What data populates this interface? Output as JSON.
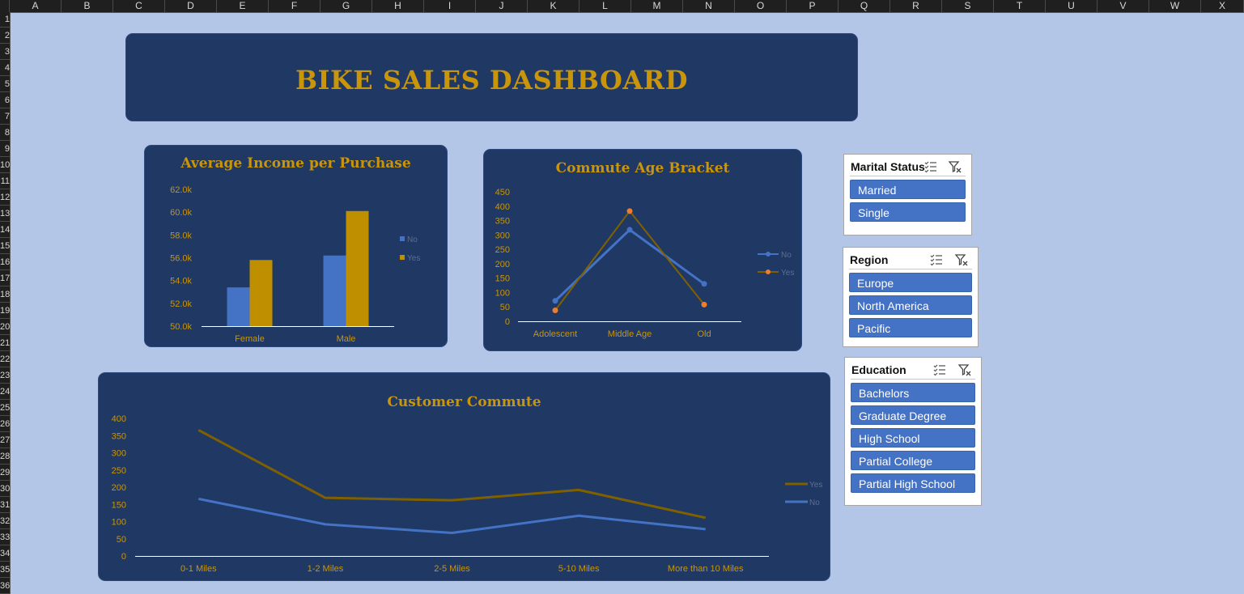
{
  "spreadsheet": {
    "columns": [
      "A",
      "B",
      "C",
      "D",
      "E",
      "F",
      "G",
      "H",
      "I",
      "J",
      "K",
      "L",
      "M",
      "N",
      "O",
      "P",
      "Q",
      "R",
      "S",
      "T",
      "U",
      "V",
      "W",
      "X"
    ],
    "rows": [
      "1",
      "2",
      "3",
      "4",
      "5",
      "6",
      "7",
      "8",
      "9",
      "10",
      "11",
      "12",
      "13",
      "14",
      "15",
      "16",
      "17",
      "18",
      "19",
      "20",
      "21",
      "22",
      "23",
      "24",
      "25",
      "26",
      "27",
      "28",
      "29",
      "30",
      "31",
      "32",
      "33",
      "34",
      "35",
      "36"
    ]
  },
  "dashboard": {
    "title": "BIKE SALES DASHBOARD"
  },
  "colors": {
    "no": "#4472c4",
    "yes": "#bf8f00",
    "yes_line": "#7f6000",
    "yes_marker": "#ed7d31",
    "accent_text": "#c9950a",
    "panel": "#203864"
  },
  "chart_data": [
    {
      "type": "bar",
      "title": "Average Income per Purchase",
      "categories": [
        "Female",
        "Male"
      ],
      "series": [
        {
          "name": "No",
          "values": [
            53400,
            56200
          ]
        },
        {
          "name": "Yes",
          "values": [
            55800,
            60100
          ]
        }
      ],
      "ylim": [
        50000,
        62000
      ],
      "yticks": [
        "50.0k",
        "52.0k",
        "54.0k",
        "56.0k",
        "58.0k",
        "60.0k",
        "62.0k"
      ],
      "legend": "right"
    },
    {
      "type": "line",
      "title": "Commute Age Bracket",
      "categories": [
        "Adolescent",
        "Middle Age",
        "Old"
      ],
      "series": [
        {
          "name": "No",
          "values": [
            71,
            318,
            130
          ]
        },
        {
          "name": "Yes",
          "values": [
            38,
            383,
            58
          ]
        }
      ],
      "ylim": [
        0,
        450
      ],
      "yticks": [
        "0",
        "50",
        "100",
        "150",
        "200",
        "250",
        "300",
        "350",
        "400",
        "450"
      ],
      "legend": "right"
    },
    {
      "type": "line",
      "title": "Customer Commute",
      "categories": [
        "0-1 Miles",
        "1-2 Miles",
        "2-5 Miles",
        "5-10 Miles",
        "More than 10 Miles"
      ],
      "series": [
        {
          "name": "Yes",
          "values": [
            366,
            169,
            162,
            192,
            111
          ]
        },
        {
          "name": "No",
          "values": [
            166,
            92,
            67,
            117,
            78
          ]
        }
      ],
      "ylim": [
        0,
        400
      ],
      "yticks": [
        "0",
        "50",
        "100",
        "150",
        "200",
        "250",
        "300",
        "350",
        "400"
      ],
      "legend": "right"
    }
  ],
  "slicers": {
    "marital": {
      "title": "Marital Status",
      "items": [
        "Married",
        "Single"
      ]
    },
    "region": {
      "title": "Region",
      "items": [
        "Europe",
        "North America",
        "Pacific"
      ]
    },
    "education": {
      "title": "Education",
      "items": [
        "Bachelors",
        "Graduate Degree",
        "High School",
        "Partial College",
        "Partial High School"
      ]
    }
  },
  "icons": {
    "multiselect": "multi-select-icon",
    "clear": "clear-filter-icon"
  }
}
